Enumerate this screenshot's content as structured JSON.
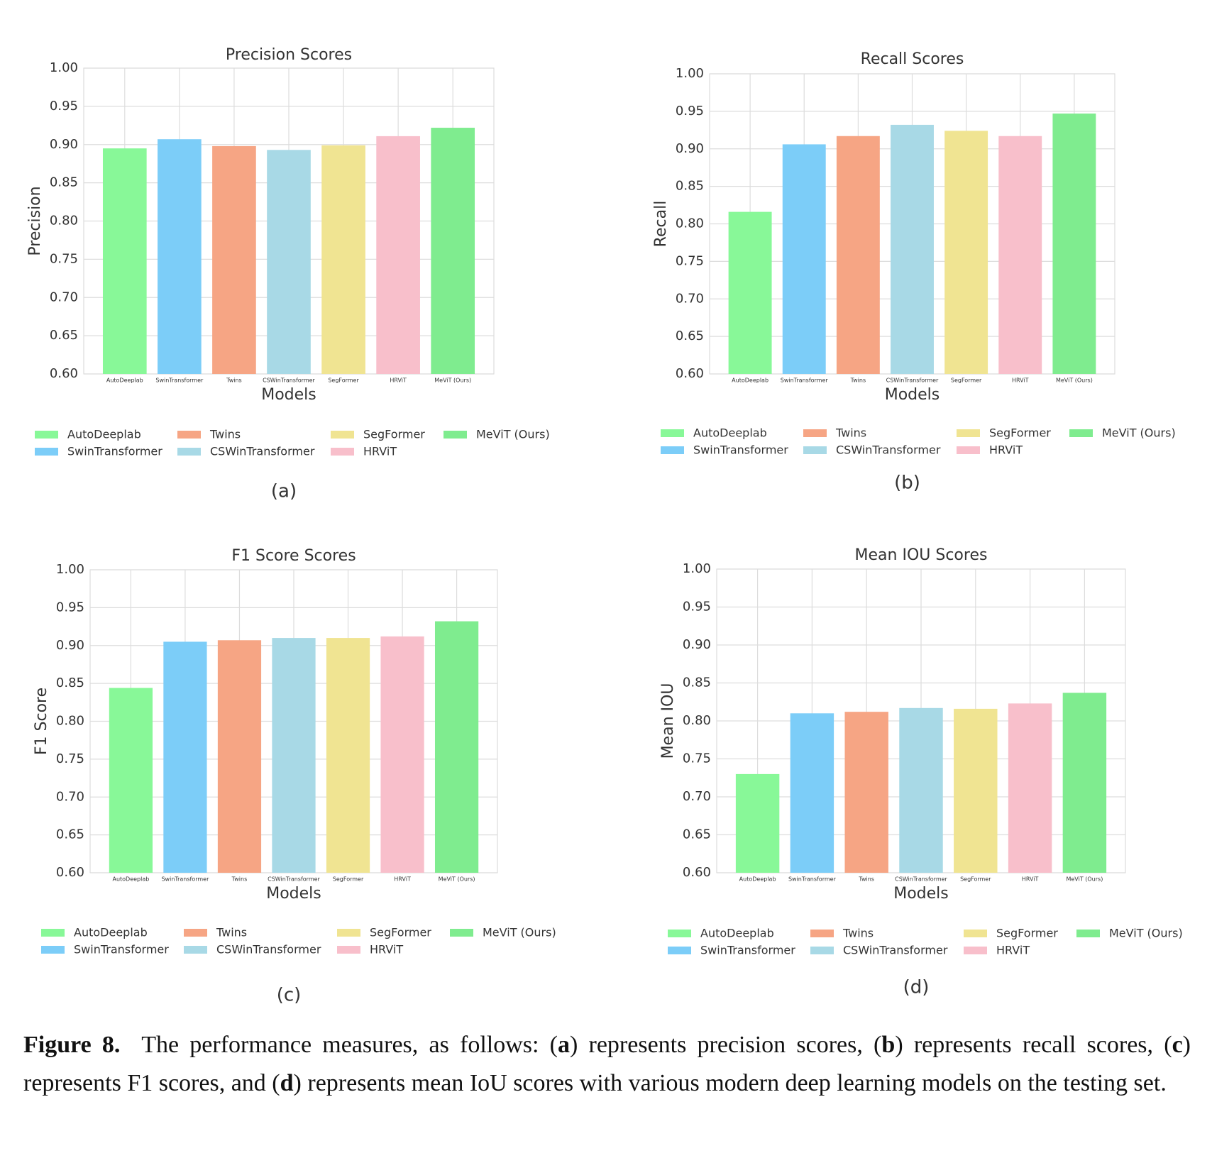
{
  "chart_data": [
    {
      "type": "bar",
      "title": "Precision Scores",
      "xlabel": "Models",
      "ylabel": "Precision",
      "panel_label": "(a)",
      "categories": [
        "AutoDeeplab",
        "SwinTransformer",
        "Twins",
        "CSWinTransformer",
        "SegFormer",
        "HRViT",
        "MeViT (Ours)"
      ],
      "values": [
        0.895,
        0.907,
        0.898,
        0.893,
        0.899,
        0.911,
        0.922
      ],
      "colors": [
        "#88f898",
        "#7ccdf8",
        "#f6a584",
        "#a8d9e6",
        "#f0e492",
        "#f8bfcb",
        "#7fec8f"
      ],
      "ylim": [
        0.6,
        1.0
      ],
      "yticks": [
        {
          "value": 0.6,
          "label": "0.60"
        },
        0.65,
        {
          "value": 0.7,
          "label": "0.70"
        },
        0.75,
        {
          "value": 0.8,
          "label": "0.80"
        },
        0.85,
        {
          "value": 0.9,
          "label": "0.90"
        },
        0.95,
        {
          "value": 1.0,
          "label": "1.00"
        }
      ],
      "grid": true,
      "legend": "bottom"
    },
    {
      "type": "bar",
      "title": "Recall Scores",
      "xlabel": "Models",
      "ylabel": "Recall",
      "panel_label": "(b)",
      "categories": [
        "AutoDeeplab",
        "SwinTransformer",
        "Twins",
        "CSWinTransformer",
        "SegFormer",
        "HRViT",
        "MeViT (Ours)"
      ],
      "values": [
        0.816,
        0.906,
        0.917,
        0.932,
        0.924,
        0.917,
        0.947
      ],
      "colors": [
        "#88f898",
        "#7ccdf8",
        "#f6a584",
        "#a8d9e6",
        "#f0e492",
        "#f8bfcb",
        "#7fec8f"
      ],
      "ylim": [
        0.6,
        1.0
      ],
      "yticks": [
        {
          "value": 0.6,
          "label": "0.60"
        },
        0.65,
        {
          "value": 0.7,
          "label": "0.70"
        },
        0.75,
        {
          "value": 0.8,
          "label": "0.80"
        },
        0.85,
        {
          "value": 0.9,
          "label": "0.90"
        },
        0.95,
        {
          "value": 1.0,
          "label": "1.00"
        }
      ],
      "grid": true,
      "legend": "bottom"
    },
    {
      "type": "bar",
      "title": "F1 Score Scores",
      "xlabel": "Models",
      "ylabel": "F1 Score",
      "panel_label": "(c)",
      "categories": [
        "AutoDeeplab",
        "SwinTransformer",
        "Twins",
        "CSWinTransformer",
        "SegFormer",
        "HRViT",
        "MeViT (Ours)"
      ],
      "values": [
        0.844,
        0.905,
        0.907,
        0.91,
        0.91,
        0.912,
        0.932
      ],
      "colors": [
        "#88f898",
        "#7ccdf8",
        "#f6a584",
        "#a8d9e6",
        "#f0e492",
        "#f8bfcb",
        "#7fec8f"
      ],
      "ylim": [
        0.6,
        1.0
      ],
      "yticks": [
        {
          "value": 0.6,
          "label": "0.60"
        },
        0.65,
        {
          "value": 0.7,
          "label": "0.70"
        },
        0.75,
        {
          "value": 0.8,
          "label": "0.80"
        },
        0.85,
        {
          "value": 0.9,
          "label": "0.90"
        },
        0.95,
        {
          "value": 1.0,
          "label": "1.00"
        }
      ],
      "grid": true,
      "legend": "bottom"
    },
    {
      "type": "bar",
      "title": "Mean IOU Scores",
      "xlabel": "Models",
      "ylabel": "Mean IOU",
      "panel_label": "(d)",
      "categories": [
        "AutoDeeplab",
        "SwinTransformer",
        "Twins",
        "CSWinTransformer",
        "SegFormer",
        "HRViT",
        "MeViT (Ours)"
      ],
      "values": [
        0.73,
        0.81,
        0.812,
        0.817,
        0.816,
        0.823,
        0.837
      ],
      "colors": [
        "#88f898",
        "#7ccdf8",
        "#f6a584",
        "#a8d9e6",
        "#f0e492",
        "#f8bfcb",
        "#7fec8f"
      ],
      "ylim": [
        0.6,
        1.0
      ],
      "yticks": [
        {
          "value": 0.6,
          "label": "0.60"
        },
        0.65,
        {
          "value": 0.7,
          "label": "0.70"
        },
        0.75,
        {
          "value": 0.8,
          "label": "0.80"
        },
        0.85,
        {
          "value": 0.9,
          "label": "0.90"
        },
        0.95,
        {
          "value": 1.0,
          "label": "1.00"
        }
      ],
      "grid": true,
      "legend": "bottom"
    }
  ],
  "caption": {
    "label": "Figure 8.",
    "parts": [
      "The performance measures, as follows: (",
      "a",
      ") represents precision scores, (",
      "b",
      ") represents recall scores, (",
      "c",
      ") represents F1 scores, and (",
      "d",
      ") represents mean IoU scores with various modern deep learning models on the testing set."
    ]
  }
}
